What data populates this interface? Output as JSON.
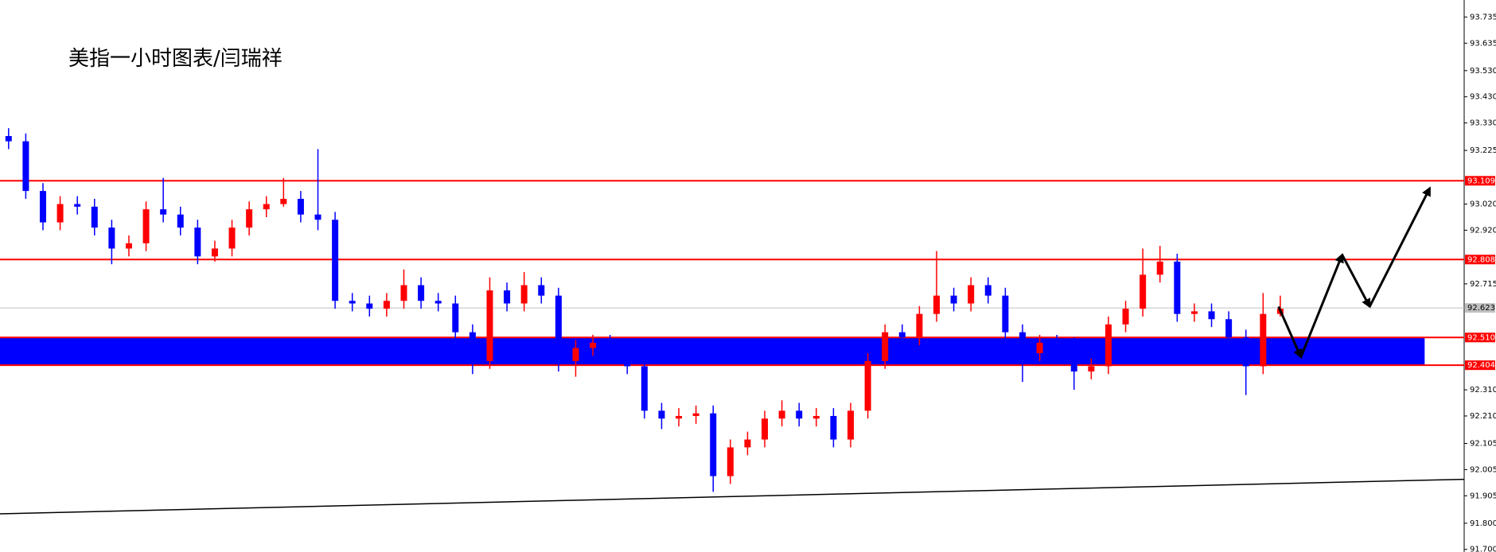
{
  "chart_data": {
    "type": "candlestick",
    "title": "美指一小时图表/闫瑞祥",
    "up_color": "#ff0000",
    "down_color": "#0000ff",
    "xlim": [
      -0.5,
      84.7
    ],
    "ylim": [
      91.69,
      93.8
    ],
    "yticks": [
      93.735,
      93.635,
      {
        "value": 93.53,
        "label": "93.530"
      },
      {
        "value": 93.43,
        "label": "93.430"
      },
      {
        "value": 93.33,
        "label": "93.330"
      },
      93.225,
      {
        "value": 93.02,
        "label": "93.020"
      },
      {
        "value": 92.92,
        "label": "92.920"
      },
      92.715,
      {
        "value": 92.31,
        "label": "92.310"
      },
      {
        "value": 92.21,
        "label": "92.210"
      },
      92.105,
      92.005,
      91.905,
      {
        "value": 91.8,
        "label": "91.800"
      },
      {
        "value": 91.7,
        "label": "91.700"
      }
    ],
    "levels": [
      {
        "value": 93.109,
        "color": "#ff0000"
      },
      {
        "value": 92.808,
        "color": "#ff0000"
      },
      {
        "value": 92.623,
        "color": "#c0c0c0"
      },
      {
        "value": {
          "value": 92.51,
          "label": "92.510"
        },
        "color": "#ff0000"
      },
      {
        "value": 92.404,
        "color": "#ff0000"
      }
    ],
    "zone": {
      "low": 92.404,
      "high": 92.51,
      "x_end": 82.4,
      "color": "#0000ff"
    },
    "trendline": {
      "x": [
        -0.5,
        84.7
      ],
      "y": [
        91.836,
        91.968
      ]
    },
    "forecast_path": {
      "x": [
        73.9,
        75.2,
        77.6,
        79.2,
        82.7
      ],
      "y": [
        92.628,
        92.435,
        92.826,
        92.628,
        93.081
      ]
    },
    "open": [
      93.28,
      93.26,
      93.07,
      92.95,
      93.02,
      93.01,
      92.93,
      92.85,
      92.87,
      93.0,
      92.98,
      92.93,
      92.82,
      92.85,
      92.93,
      93.0,
      93.02,
      93.04,
      92.98,
      92.96,
      92.65,
      92.64,
      92.62,
      92.65,
      92.71,
      92.65,
      92.64,
      92.53,
      92.42,
      92.69,
      92.64,
      92.71,
      92.67,
      92.42,
      92.47,
      92.49,
      92.47,
      92.4,
      92.23,
      92.2,
      92.21,
      92.22,
      91.98,
      92.09,
      92.12,
      92.2,
      92.23,
      92.2,
      92.21,
      92.12,
      92.23,
      92.42,
      92.53,
      92.51,
      92.6,
      92.67,
      92.64,
      92.71,
      92.67,
      92.53,
      92.45,
      92.49,
      92.48,
      92.38,
      92.4,
      92.56,
      92.62,
      92.75,
      92.8,
      92.6,
      92.61,
      92.58,
      92.51,
      92.4,
      92.6
    ],
    "high": [
      93.31,
      93.29,
      93.1,
      93.05,
      93.05,
      93.04,
      92.96,
      92.9,
      93.03,
      93.12,
      93.01,
      92.96,
      92.88,
      92.96,
      93.03,
      93.05,
      93.12,
      93.07,
      93.23,
      92.99,
      92.68,
      92.67,
      92.68,
      92.77,
      92.74,
      92.68,
      92.67,
      92.56,
      92.74,
      92.72,
      92.76,
      92.74,
      92.7,
      92.5,
      92.52,
      92.52,
      92.5,
      92.43,
      92.26,
      92.24,
      92.25,
      92.25,
      92.12,
      92.15,
      92.23,
      92.27,
      92.26,
      92.24,
      92.24,
      92.26,
      92.45,
      92.56,
      92.56,
      92.63,
      92.84,
      92.7,
      92.74,
      92.74,
      92.7,
      92.56,
      92.52,
      92.52,
      92.51,
      92.43,
      92.59,
      92.65,
      92.85,
      92.86,
      92.83,
      92.64,
      92.64,
      92.61,
      92.54,
      92.68,
      92.67
    ],
    "low": [
      93.23,
      93.04,
      92.92,
      92.92,
      92.98,
      92.9,
      92.79,
      92.82,
      92.84,
      92.95,
      92.9,
      92.79,
      92.8,
      92.82,
      92.9,
      92.97,
      93.01,
      92.95,
      92.92,
      92.62,
      92.61,
      92.59,
      92.59,
      92.62,
      92.62,
      92.61,
      92.5,
      92.37,
      92.39,
      92.61,
      92.61,
      92.64,
      92.38,
      92.36,
      92.44,
      92.44,
      92.37,
      92.2,
      92.16,
      92.17,
      92.18,
      91.92,
      91.95,
      92.06,
      92.09,
      92.17,
      92.17,
      92.17,
      92.09,
      92.09,
      92.2,
      92.39,
      92.47,
      92.48,
      92.57,
      92.61,
      92.61,
      92.64,
      92.42,
      92.34,
      92.42,
      92.45,
      92.31,
      92.35,
      92.37,
      92.53,
      92.59,
      92.72,
      92.57,
      92.57,
      92.55,
      92.48,
      92.29,
      92.37,
      92.59
    ],
    "close": [
      93.26,
      93.07,
      92.95,
      93.02,
      93.01,
      92.93,
      92.85,
      92.87,
      93.0,
      92.98,
      92.93,
      92.82,
      92.85,
      92.93,
      93.0,
      93.02,
      93.04,
      92.98,
      92.96,
      92.65,
      92.64,
      92.62,
      92.65,
      92.71,
      92.65,
      92.64,
      92.53,
      92.42,
      92.69,
      92.64,
      92.71,
      92.67,
      92.42,
      92.47,
      92.49,
      92.47,
      92.4,
      92.23,
      92.2,
      92.21,
      92.22,
      91.98,
      92.09,
      92.12,
      92.2,
      92.23,
      92.2,
      92.21,
      92.12,
      92.23,
      92.42,
      92.53,
      92.51,
      92.6,
      92.67,
      92.64,
      92.71,
      92.67,
      92.53,
      92.45,
      92.49,
      92.48,
      92.38,
      92.4,
      92.56,
      92.62,
      92.75,
      92.8,
      92.6,
      92.61,
      92.58,
      92.51,
      92.4,
      92.6,
      92.62
    ]
  }
}
